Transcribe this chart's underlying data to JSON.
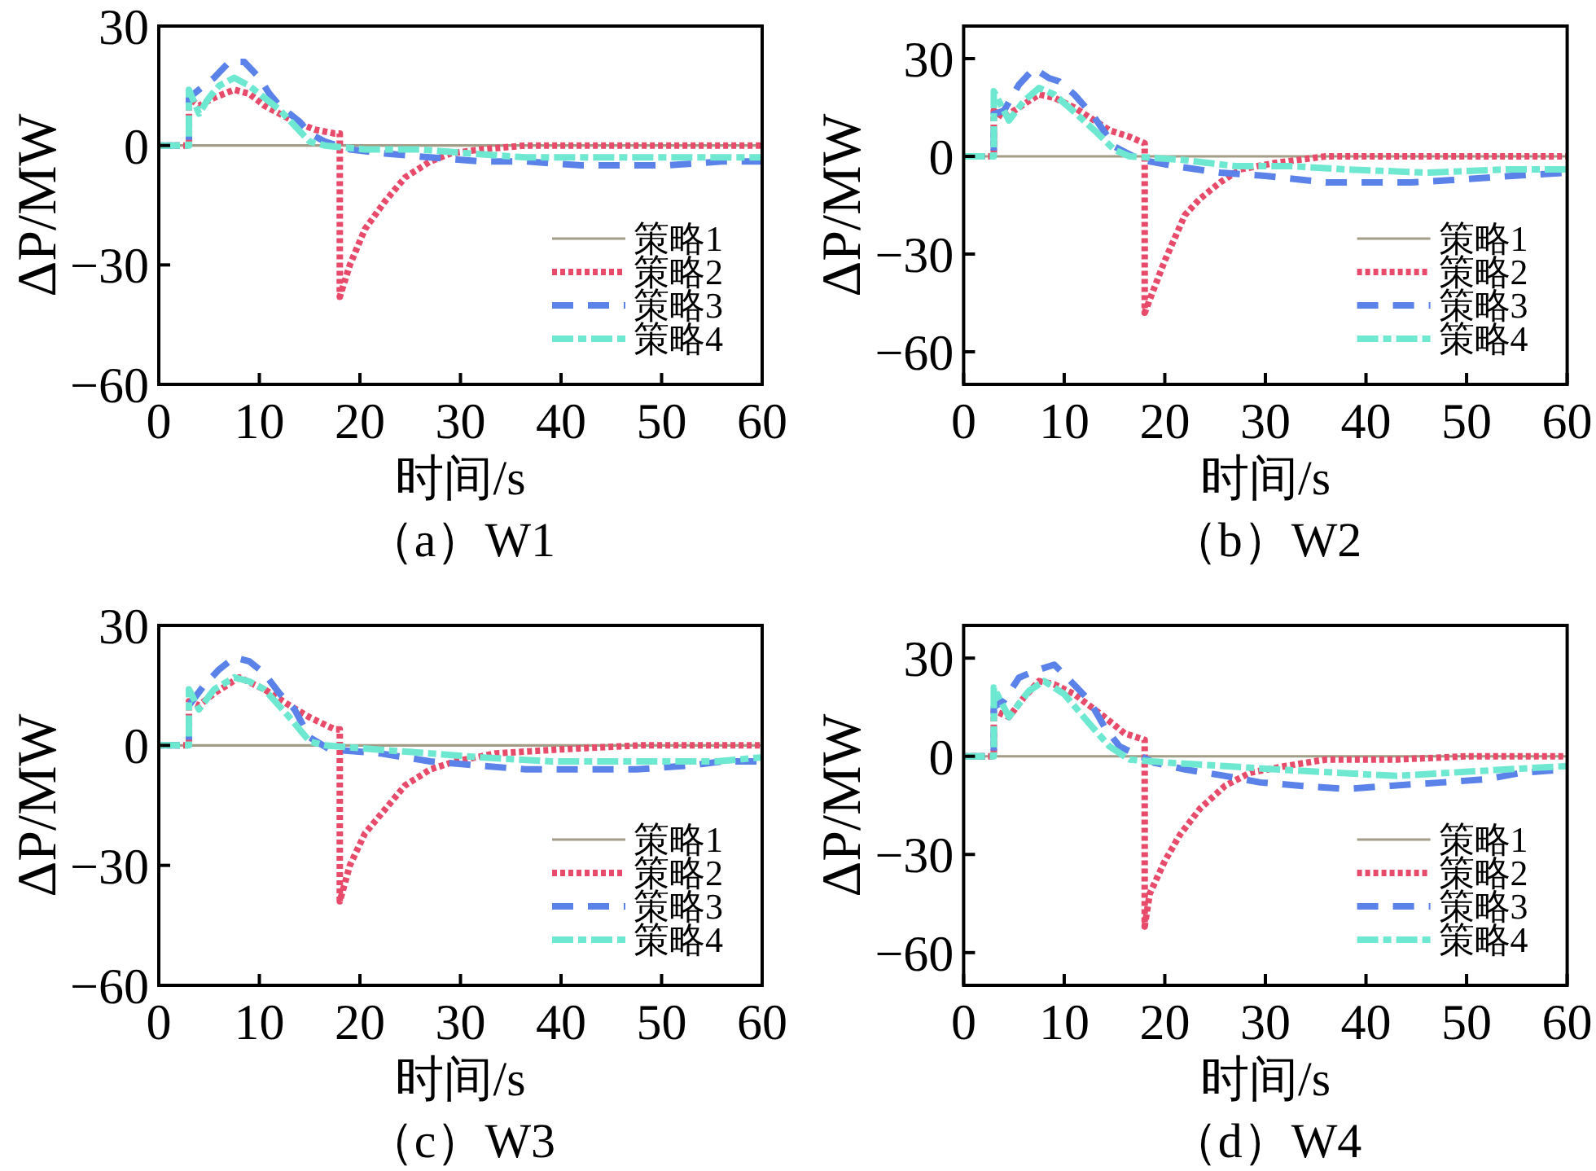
{
  "chart_data": [
    {
      "type": "line",
      "title": "（a）W1",
      "xlabel": "时间/s",
      "ylabel": "ΔP/MW",
      "xlim": [
        0,
        60
      ],
      "xticks": [
        0,
        10,
        20,
        30,
        40,
        50,
        60
      ],
      "ylim": [
        -60,
        30
      ],
      "yticks": [
        -60,
        -30,
        0,
        30
      ],
      "legend": "bottom right",
      "series": [
        {
          "name": "策略1",
          "color": "#a39c87",
          "line_style": "solid",
          "x": [
            0,
            60
          ],
          "values": [
            0,
            0
          ]
        },
        {
          "name": "策略2",
          "color": "#e84a6a",
          "line_style": "dotted",
          "x": [
            0,
            3,
            3,
            4,
            5.5,
            7.5,
            9,
            10.5,
            12,
            13.5,
            15.5,
            17.5,
            18,
            18,
            19,
            20.5,
            22.5,
            24.5,
            27,
            29,
            32,
            36.5,
            60
          ],
          "values": [
            0,
            0,
            12,
            10,
            12,
            14,
            13,
            10,
            8,
            6,
            4,
            3,
            3,
            -38,
            -30,
            -21,
            -14,
            -8,
            -4,
            -2,
            -1,
            0,
            0
          ]
        },
        {
          "name": "策略3",
          "color": "#5b82e8",
          "line_style": "dashed",
          "x": [
            0,
            3,
            3,
            4,
            5.5,
            7,
            8.5,
            10,
            11,
            12,
            14,
            15,
            16.5,
            19,
            22.5,
            27,
            32,
            36.5,
            42,
            50.5,
            56,
            60
          ],
          "values": [
            0,
            0,
            12,
            14,
            17,
            21,
            21,
            17,
            13,
            10,
            6,
            3,
            1,
            -1,
            -2,
            -3,
            -4,
            -4,
            -5,
            -5,
            -4,
            -4
          ]
        },
        {
          "name": "策略4",
          "color": "#6ee8d0",
          "line_style": "dashdot",
          "x": [
            0,
            3,
            3,
            4,
            5,
            6,
            7.5,
            9,
            10.5,
            12,
            13.5,
            15,
            16.5,
            20.5,
            26,
            31,
            36.5,
            43,
            50,
            56,
            60
          ],
          "values": [
            0,
            0,
            14,
            8,
            12,
            15,
            17,
            15,
            12,
            9,
            5,
            1,
            0,
            -1,
            -1,
            -2,
            -3,
            -3,
            -3,
            -3,
            -3
          ]
        }
      ]
    },
    {
      "type": "line",
      "title": "（b）W2",
      "xlabel": "时间/s",
      "ylabel": "ΔP/MW",
      "xlim": [
        0,
        60
      ],
      "xticks": [
        0,
        10,
        20,
        30,
        40,
        50,
        60
      ],
      "ylim": [
        -70,
        40
      ],
      "yticks": [
        -60,
        -30,
        0,
        30
      ],
      "legend": "bottom right",
      "series": [
        {
          "name": "策略1",
          "color": "#a39c87",
          "line_style": "solid",
          "x": [
            0,
            60
          ],
          "values": [
            0,
            0
          ]
        },
        {
          "name": "策略2",
          "color": "#e84a6a",
          "line_style": "dotted",
          "x": [
            0,
            3,
            3,
            4,
            5.5,
            7.5,
            9,
            11,
            13,
            14.5,
            16.5,
            18,
            18,
            19,
            20,
            21,
            22,
            23.5,
            25.5,
            27.5,
            31,
            36,
            45,
            60
          ],
          "values": [
            0,
            0,
            14,
            12,
            15,
            19,
            18,
            15,
            11,
            8,
            6,
            4,
            -48,
            -40,
            -32,
            -25,
            -18,
            -13,
            -8,
            -4,
            -2,
            0,
            0,
            0
          ]
        },
        {
          "name": "策略3",
          "color": "#5b82e8",
          "line_style": "dashed",
          "x": [
            0,
            3,
            3,
            4,
            5.5,
            7,
            8.5,
            9.5,
            11,
            13,
            15,
            17.5,
            21,
            25.5,
            30,
            36,
            40.5,
            44.5,
            50,
            54.5,
            60
          ],
          "values": [
            0,
            0,
            13,
            14,
            22,
            27,
            24,
            23,
            19,
            12,
            3,
            -1,
            -3,
            -5,
            -6,
            -8,
            -8,
            -8,
            -7,
            -6,
            -5
          ]
        },
        {
          "name": "策略4",
          "color": "#6ee8d0",
          "line_style": "dashdot",
          "x": [
            0,
            3,
            3,
            4.5,
            6,
            7.5,
            9,
            10.5,
            13,
            15,
            16.5,
            21.5,
            27,
            32.5,
            38,
            46,
            54,
            60
          ],
          "values": [
            0,
            0,
            20,
            11,
            17,
            21,
            19,
            15,
            8,
            2,
            0,
            -1,
            -3,
            -3,
            -4,
            -5,
            -4,
            -4
          ]
        }
      ]
    },
    {
      "type": "line",
      "title": "（c）W3",
      "xlabel": "时间/s",
      "ylabel": "ΔP/MW",
      "xlim": [
        0,
        60
      ],
      "xticks": [
        0,
        10,
        20,
        30,
        40,
        50,
        60
      ],
      "ylim": [
        -60,
        30
      ],
      "yticks": [
        -60,
        -30,
        0,
        30
      ],
      "legend": "bottom right",
      "series": [
        {
          "name": "策略1",
          "color": "#a39c87",
          "line_style": "solid",
          "x": [
            0,
            60
          ],
          "values": [
            0,
            0
          ]
        },
        {
          "name": "策略2",
          "color": "#e84a6a",
          "line_style": "dotted",
          "x": [
            0,
            3,
            3,
            4,
            5.5,
            8,
            10.5,
            13,
            15,
            17.5,
            18,
            18,
            19,
            20.5,
            22.5,
            24.5,
            27,
            29.5,
            33.5,
            40,
            48,
            60
          ],
          "values": [
            0,
            0,
            11,
            10,
            13,
            17,
            14,
            10,
            7,
            4,
            4,
            -39,
            -30,
            -22,
            -16,
            -10,
            -6,
            -4,
            -2,
            -1,
            0,
            0
          ]
        },
        {
          "name": "策略3",
          "color": "#5b82e8",
          "line_style": "dashed",
          "x": [
            0,
            3,
            3,
            4.5,
            6,
            7.5,
            9,
            10.5,
            12,
            13.5,
            15,
            17,
            22,
            27,
            31.5,
            36.5,
            42,
            47.5,
            53,
            56,
            60
          ],
          "values": [
            0,
            0,
            10,
            15,
            19,
            22,
            21,
            18,
            13,
            9,
            2,
            -1,
            -2,
            -4,
            -5,
            -6,
            -6,
            -6,
            -5,
            -4,
            -4
          ]
        },
        {
          "name": "策略4",
          "color": "#6ee8d0",
          "line_style": "dashdot",
          "x": [
            0,
            3,
            3,
            4,
            5.5,
            7.5,
            9,
            10.5,
            13,
            15,
            16.5,
            21.5,
            27,
            32,
            39,
            47.5,
            55.5,
            60
          ],
          "values": [
            0,
            0,
            14,
            9,
            14,
            17,
            16,
            14,
            7,
            1,
            0,
            -1,
            -2,
            -3,
            -4,
            -4,
            -4,
            -3
          ]
        }
      ]
    },
    {
      "type": "line",
      "title": "（d）W4",
      "xlabel": "时间/s",
      "ylabel": "ΔP/MW",
      "xlim": [
        0,
        60
      ],
      "xticks": [
        0,
        10,
        20,
        30,
        40,
        50,
        60
      ],
      "ylim": [
        -70,
        40
      ],
      "yticks": [
        -60,
        -30,
        0,
        30
      ],
      "legend": "bottom right",
      "series": [
        {
          "name": "策略1",
          "color": "#a39c87",
          "line_style": "solid",
          "x": [
            0,
            60
          ],
          "values": [
            0,
            0
          ]
        },
        {
          "name": "策略2",
          "color": "#e84a6a",
          "line_style": "dotted",
          "x": [
            0,
            3,
            3,
            4.5,
            6,
            7.5,
            9,
            11,
            14,
            16,
            18,
            18,
            18.5,
            20,
            21.5,
            23.5,
            26,
            28.5,
            32,
            36,
            43,
            50,
            60
          ],
          "values": [
            0,
            0,
            14,
            12,
            18,
            23,
            22,
            19,
            12,
            7,
            5,
            -52,
            -42,
            -32,
            -24,
            -16,
            -9,
            -5,
            -3,
            -1,
            -1,
            0,
            0
          ]
        },
        {
          "name": "策略3",
          "color": "#5b82e8",
          "line_style": "dashed",
          "x": [
            0,
            3,
            3,
            4,
            5.5,
            7,
            9,
            10,
            12.5,
            14,
            15.5,
            19,
            22,
            26,
            29.5,
            33.5,
            38,
            42.5,
            47.5,
            52,
            55.5,
            60
          ],
          "values": [
            0,
            0,
            15,
            17,
            24,
            26,
            28,
            25,
            17,
            9,
            3,
            -2,
            -4,
            -6,
            -8,
            -9,
            -10,
            -9,
            -8,
            -7,
            -5,
            -4
          ]
        },
        {
          "name": "策略4",
          "color": "#6ee8d0",
          "line_style": "dashdot",
          "x": [
            0,
            3,
            3,
            4.5,
            6.5,
            8,
            10,
            12.5,
            14.5,
            16.5,
            20.5,
            26,
            31,
            37,
            43,
            48.5,
            54,
            60
          ],
          "values": [
            0,
            0,
            21,
            12,
            20,
            23,
            19,
            10,
            3,
            -1,
            -2,
            -3,
            -4,
            -5,
            -6,
            -5,
            -4,
            -3
          ]
        }
      ]
    }
  ]
}
